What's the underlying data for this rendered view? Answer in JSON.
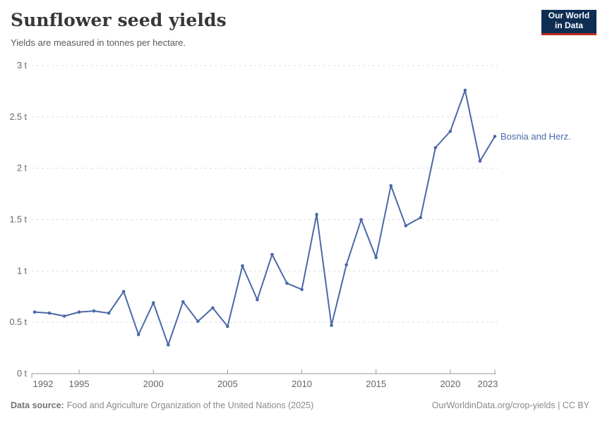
{
  "header": {
    "title": "Sunflower seed yields",
    "subtitle": "Yields are measured in tonnes per hectare.",
    "logo": {
      "line1": "Our World",
      "line2": "in Data"
    }
  },
  "chart_data": {
    "type": "line",
    "title": "Sunflower seed yields",
    "subtitle": "Yields are measured in tonnes per hectare.",
    "unit": "tonnes per hectare",
    "x": [
      1992,
      1993,
      1994,
      1995,
      1996,
      1997,
      1998,
      1999,
      2000,
      2001,
      2002,
      2003,
      2004,
      2005,
      2006,
      2007,
      2008,
      2009,
      2010,
      2011,
      2012,
      2013,
      2014,
      2015,
      2016,
      2017,
      2018,
      2019,
      2020,
      2021,
      2022,
      2023
    ],
    "series": [
      {
        "name": "Bosnia and Herz.",
        "values": [
          0.6,
          0.59,
          0.56,
          0.6,
          0.61,
          0.59,
          0.8,
          0.38,
          0.69,
          0.28,
          0.7,
          0.51,
          0.64,
          0.46,
          1.05,
          0.72,
          1.16,
          0.88,
          0.82,
          1.55,
          0.47,
          1.06,
          1.5,
          1.13,
          1.83,
          1.44,
          1.52,
          2.2,
          2.36,
          2.76,
          2.07,
          2.31
        ]
      }
    ],
    "ylim": [
      0,
      3
    ],
    "yticks": [
      0,
      0.5,
      1,
      1.5,
      2,
      2.5,
      3
    ],
    "ytick_labels": [
      "0 t",
      "0.5 t",
      "1 t",
      "1.5 t",
      "2 t",
      "2.5 t",
      "3 t"
    ],
    "xticks": [
      1992,
      1995,
      2000,
      2005,
      2010,
      2015,
      2020,
      2023
    ],
    "grid": true,
    "legend_position": "end-of-line",
    "end_label": "Bosnia and Herz."
  },
  "colors": {
    "line": "#4a69a8",
    "grid": "#dcdcdc",
    "axis": "#999999",
    "tick_label": "#666666",
    "end_label": "#4a69a8",
    "logo_bg": "#0d2d52",
    "logo_accent": "#c0291f"
  },
  "footer": {
    "source_label": "Data source:",
    "source_text": "Food and Agriculture Organization of the United Nations (2025)",
    "right_text": "OurWorldinData.org/crop-yields | CC BY"
  }
}
